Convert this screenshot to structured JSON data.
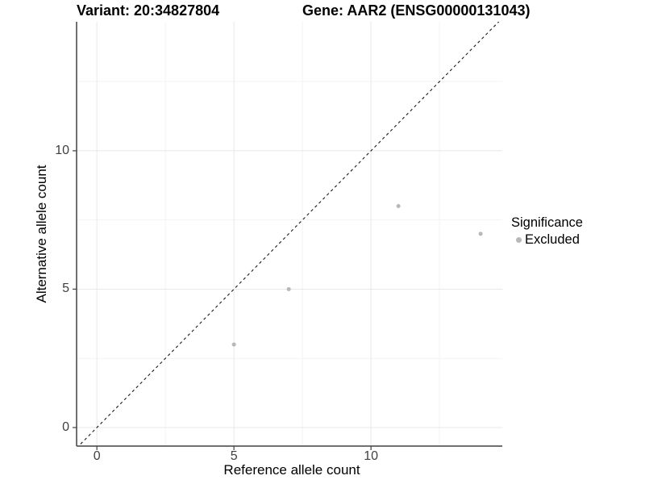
{
  "header": {
    "variant_title": "Variant: 20:34827804",
    "gene_title": "Gene: AAR2 (ENSG00000131043)"
  },
  "axes": {
    "x_label": "Reference allele count",
    "y_label": "Alternative allele count",
    "x_tick_labels": [
      "0",
      "5",
      "10"
    ],
    "y_tick_labels": [
      "0",
      "5",
      "10"
    ]
  },
  "legend": {
    "title": "Significance",
    "items": [
      {
        "label": "Excluded",
        "color": "#b8b8b8"
      }
    ]
  },
  "colors": {
    "point": "#b8b8b8",
    "grid_major": "#e8e8e8",
    "grid_minor": "#f3f3f3",
    "axis_line": "#404040",
    "reference_line": "#1a1a1a",
    "background": "#ffffff"
  },
  "chart_data": {
    "type": "scatter",
    "title": "Variant: 20:34827804 / Gene: AAR2 (ENSG00000131043)",
    "xlabel": "Reference allele count",
    "ylabel": "Alternative allele count",
    "xlim": [
      -0.74,
      14.79
    ],
    "ylim": [
      -0.67,
      14.66
    ],
    "x_major_ticks": [
      0,
      5,
      10
    ],
    "y_major_ticks": [
      0,
      5,
      10
    ],
    "x_minor_ticks": [
      2.5,
      7.5,
      12.5
    ],
    "y_minor_ticks": [
      2.5,
      7.5,
      12.5
    ],
    "grid": true,
    "legend_position": "right",
    "series": [
      {
        "name": "Excluded",
        "color": "#b8b8b8",
        "points": [
          {
            "x": 5,
            "y": 3
          },
          {
            "x": 7,
            "y": 5
          },
          {
            "x": 11,
            "y": 8
          },
          {
            "x": 14,
            "y": 7
          }
        ]
      }
    ],
    "reference_line": {
      "type": "identity",
      "slope": 1,
      "intercept": 0,
      "style": "dashed"
    }
  }
}
